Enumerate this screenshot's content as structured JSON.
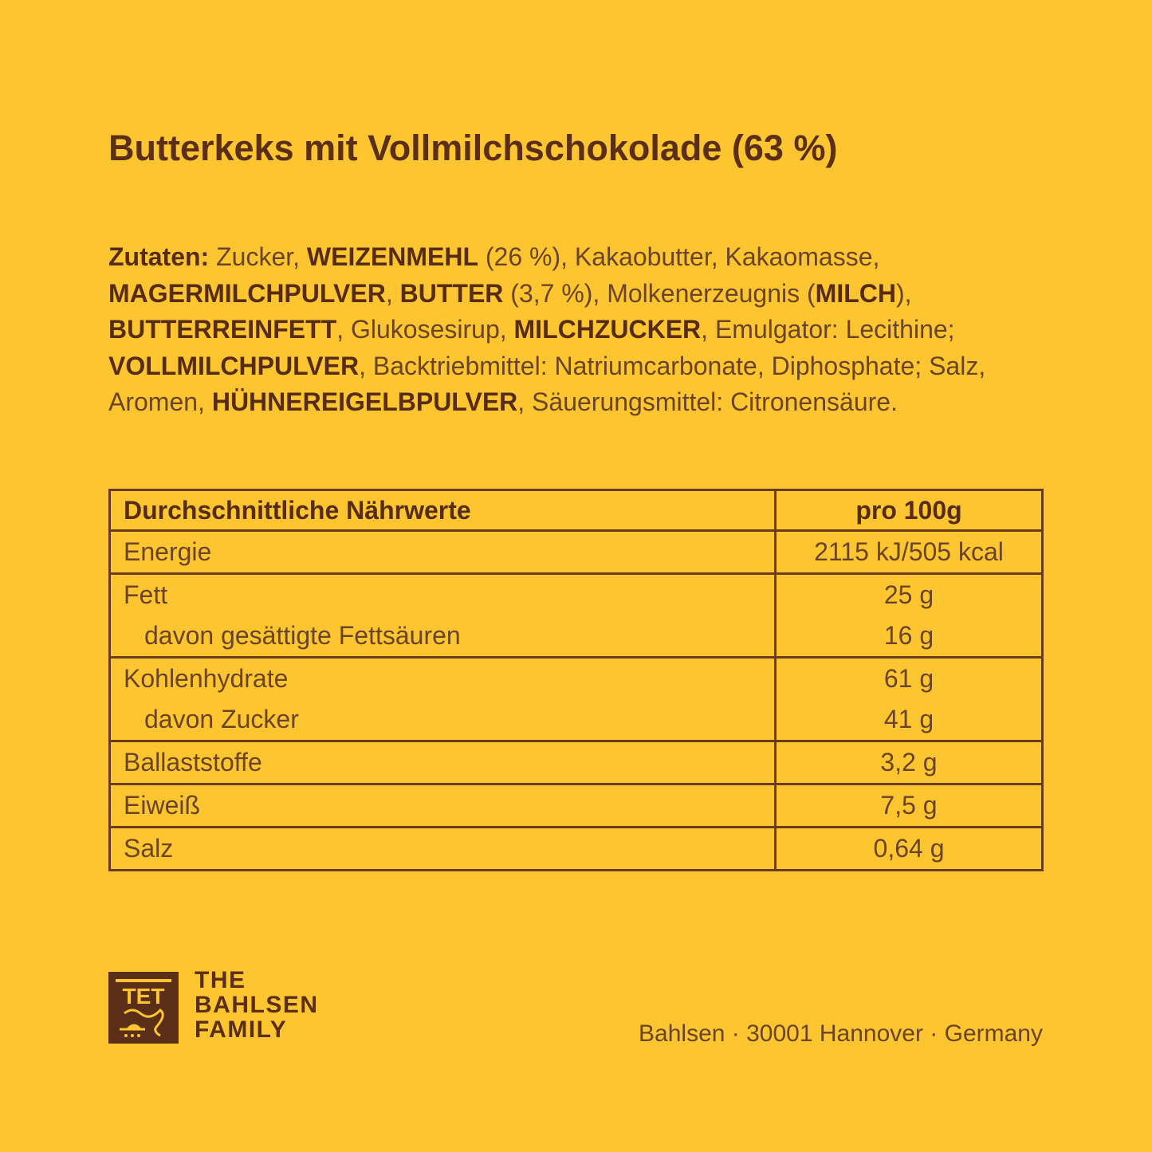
{
  "title": "Butterkeks mit Vollmilchschokolade (63 %)",
  "ingredients": [
    {
      "t": "Zutaten:",
      "b": true
    },
    {
      "t": " Zucker, ",
      "b": false
    },
    {
      "t": "WEIZENMEHL",
      "b": true
    },
    {
      "t": " (26 %), Kakaobutter, Kakaomasse, ",
      "b": false
    },
    {
      "t": "MAGERMILCHPULVER",
      "b": true
    },
    {
      "t": ", ",
      "b": false
    },
    {
      "t": "BUTTER",
      "b": true
    },
    {
      "t": " (3,7 %), Molkenerzeugnis (",
      "b": false
    },
    {
      "t": "MILCH",
      "b": true
    },
    {
      "t": "), ",
      "b": false
    },
    {
      "t": "BUTTERREINFETT",
      "b": true
    },
    {
      "t": ", Glukosesirup, ",
      "b": false
    },
    {
      "t": "MILCHZUCKER",
      "b": true
    },
    {
      "t": ", Emulgator: Lecithine; ",
      "b": false
    },
    {
      "t": "VOLLMILCHPULVER",
      "b": true
    },
    {
      "t": ", Backtriebmittel: Natriumcarbonate, Diphosphate; Salz, Aromen, ",
      "b": false
    },
    {
      "t": "HÜHNEREIGELBPULVER",
      "b": true
    },
    {
      "t": ", Säuerungsmittel: Citronensäure.",
      "b": false
    }
  ],
  "nutrition": {
    "header": {
      "label": "Durchschnittliche Nährwerte",
      "value": "pro 100g"
    },
    "groups": [
      [
        {
          "label": "Energie",
          "value": "2115 kJ/505 kcal"
        }
      ],
      [
        {
          "label": "Fett",
          "value": "25 g"
        },
        {
          "label": "davon gesättigte Fettsäuren",
          "value": "16 g",
          "sub": true
        }
      ],
      [
        {
          "label": "Kohlenhydrate",
          "value": "61 g"
        },
        {
          "label": "davon Zucker",
          "value": "41 g",
          "sub": true
        }
      ],
      [
        {
          "label": "Ballaststoffe",
          "value": "3,2 g"
        }
      ],
      [
        {
          "label": "Eiweiß",
          "value": "7,5 g"
        }
      ],
      [
        {
          "label": "Salz",
          "value": "0,64 g"
        }
      ]
    ]
  },
  "brand": {
    "logo_text": "TET",
    "line1": "THE",
    "line2": "BAHLSEN",
    "line3": "FAMILY"
  },
  "footer": "Bahlsen · 30001 Hannover · Germany",
  "colors": {
    "background": "#fdc52f",
    "brown": "#5a2e17"
  }
}
